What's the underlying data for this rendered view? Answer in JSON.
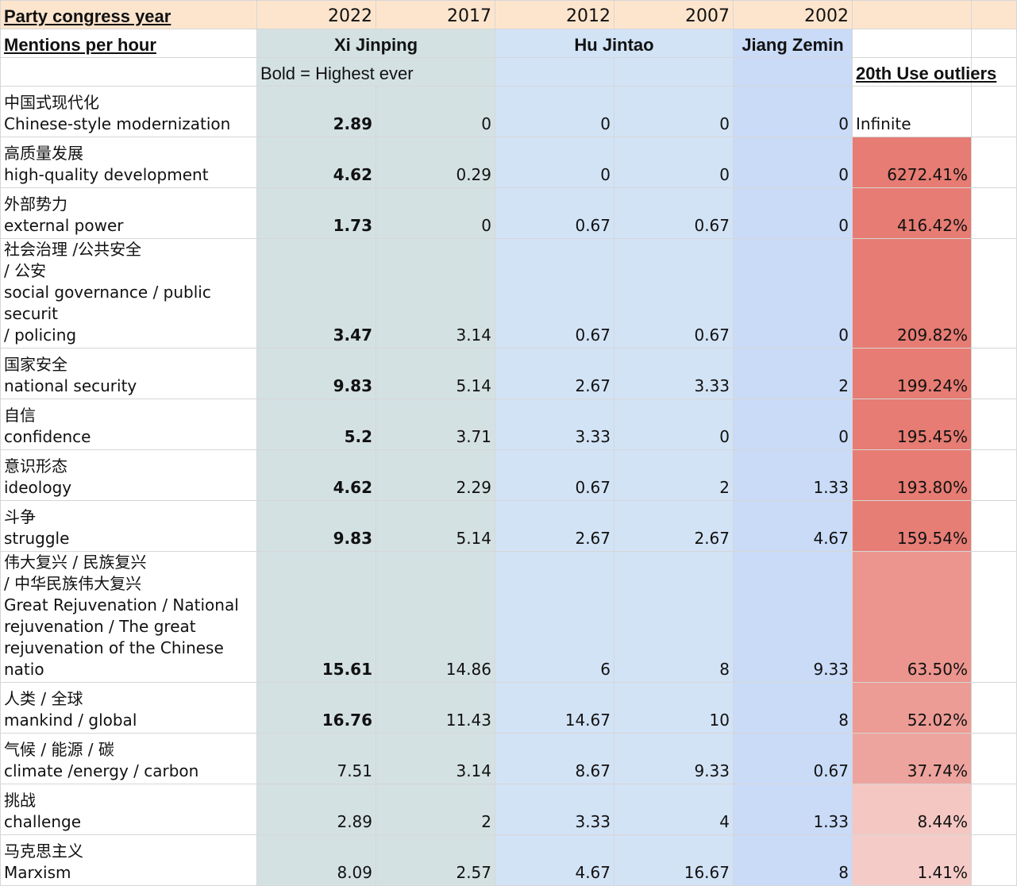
{
  "header": {
    "title": "Party congress year",
    "years": [
      "2022",
      "2017",
      "2012",
      "2007",
      "2002"
    ],
    "subtitle": "Mentions per hour",
    "leaders": {
      "xi": "Xi Jinping",
      "hu": "Hu Jintao",
      "jiang": "Jiang Zemin"
    },
    "note": "Bold = Highest ever",
    "outliers_title": "20th Use outliers"
  },
  "colors": {
    "year_row": "#fde5cd",
    "xi_column": "#d4e1e3",
    "hu_column": "#d3e3f6",
    "jiang_column": "#c9dbf7",
    "heat_strong": "#e67c73",
    "heat_light": "#f6cfcc"
  },
  "rows": [
    {
      "label": "中国式现代化\nChinese-style modernization",
      "values": [
        "2.89",
        "0",
        "0",
        "0",
        "0"
      ],
      "bold_2022": true,
      "outlier": "Infinite",
      "heat": 0
    },
    {
      "label": "高质量发展\nhigh-quality development",
      "values": [
        "4.62",
        "0.29",
        "0",
        "0",
        "0"
      ],
      "bold_2022": true,
      "outlier": "6272.41%",
      "heat": 1
    },
    {
      "label": "外部势力\nexternal power",
      "values": [
        "1.73",
        "0",
        "0.67",
        "0.67",
        "0"
      ],
      "bold_2022": true,
      "outlier": "416.42%",
      "heat": 1
    },
    {
      "label": "社会治理 /公共安全\n/ 公安\nsocial governance / public securit\n/ policing",
      "values": [
        "3.47",
        "3.14",
        "0.67",
        "0.67",
        "0"
      ],
      "bold_2022": true,
      "outlier": "209.82%",
      "heat": 1
    },
    {
      "label": "国家安全\nnational security",
      "values": [
        "9.83",
        "5.14",
        "2.67",
        "3.33",
        "2"
      ],
      "bold_2022": true,
      "outlier": "199.24%",
      "heat": 1
    },
    {
      "label": "自信\nconfidence",
      "values": [
        "5.2",
        "3.71",
        "3.33",
        "0",
        "0"
      ],
      "bold_2022": true,
      "outlier": "195.45%",
      "heat": 1
    },
    {
      "label": "意识形态\nideology",
      "values": [
        "4.62",
        "2.29",
        "0.67",
        "2",
        "1.33"
      ],
      "bold_2022": true,
      "outlier": "193.80%",
      "heat": 1
    },
    {
      "label": "斗争\nstruggle",
      "values": [
        "9.83",
        "5.14",
        "2.67",
        "2.67",
        "4.67"
      ],
      "bold_2022": true,
      "outlier": "159.54%",
      "heat": 0.97
    },
    {
      "label": "伟大复兴 / 民族复兴\n/ 中华民族伟大复兴\nGreat Rejuvenation / National\nrejuvenation / The great\nrejuvenation of the Chinese natio",
      "values": [
        "15.61",
        "14.86",
        "6",
        "8",
        "9.33"
      ],
      "bold_2022": true,
      "outlier": "63.50%",
      "heat": 0.7
    },
    {
      "label": "人类 / 全球\nmankind / global",
      "values": [
        "16.76",
        "11.43",
        "14.67",
        "10",
        "8"
      ],
      "bold_2022": true,
      "outlier": "52.02%",
      "heat": 0.62
    },
    {
      "label": "气候 / 能源 / 碳\nclimate /energy / carbon",
      "values": [
        "7.51",
        "3.14",
        "8.67",
        "9.33",
        "0.67"
      ],
      "bold_2022": false,
      "outlier": "37.74%",
      "heat": 0.52
    },
    {
      "label": "挑战\nchallenge",
      "values": [
        "2.89",
        "2",
        "3.33",
        "4",
        "1.33"
      ],
      "bold_2022": false,
      "outlier": "8.44%",
      "heat": 0.1
    },
    {
      "label": "马克思主义\nMarxism",
      "values": [
        "8.09",
        "2.57",
        "4.67",
        "16.67",
        "8"
      ],
      "bold_2022": false,
      "outlier": "1.41%",
      "heat": 0.05
    }
  ]
}
